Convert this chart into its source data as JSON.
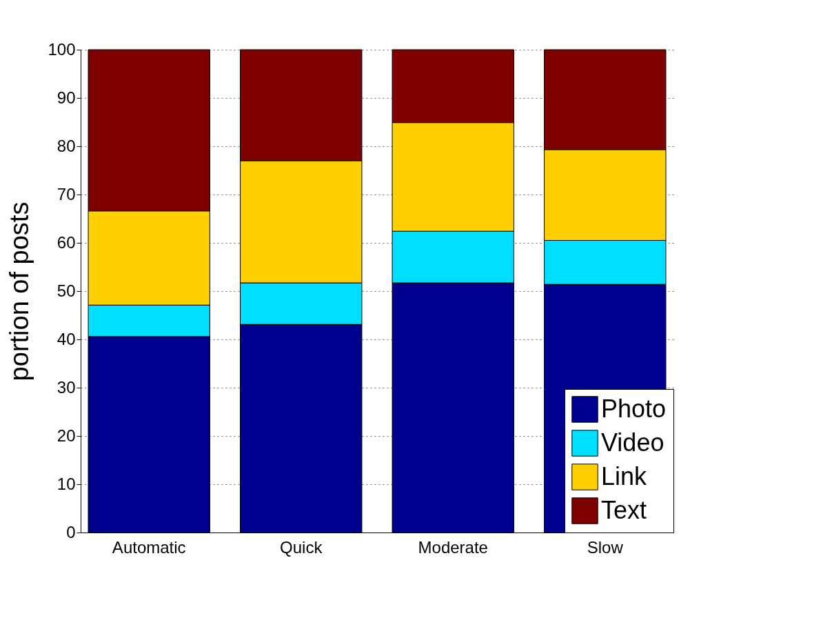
{
  "chart_data": {
    "type": "bar",
    "stacked": true,
    "ylabel": "portion of posts",
    "categories": [
      "Automatic",
      "Quick",
      "Moderate",
      "Slow"
    ],
    "series": [
      {
        "name": "Photo",
        "color": "#00008f",
        "values": [
          40.6,
          43.1,
          51.7,
          51.4
        ]
      },
      {
        "name": "Video",
        "color": "#00dfff",
        "values": [
          6.5,
          8.6,
          10.7,
          9.1
        ]
      },
      {
        "name": "Link",
        "color": "#ffcf00",
        "values": [
          19.5,
          25.3,
          22.5,
          18.8
        ]
      },
      {
        "name": "Text",
        "color": "#7f0000",
        "values": [
          33.4,
          23.0,
          15.1,
          20.7
        ]
      }
    ],
    "ylim": [
      0,
      100
    ],
    "yticks": [
      0,
      10,
      20,
      30,
      40,
      50,
      60,
      70,
      80,
      90,
      100
    ],
    "grid": "y",
    "legend": "bottom right"
  }
}
